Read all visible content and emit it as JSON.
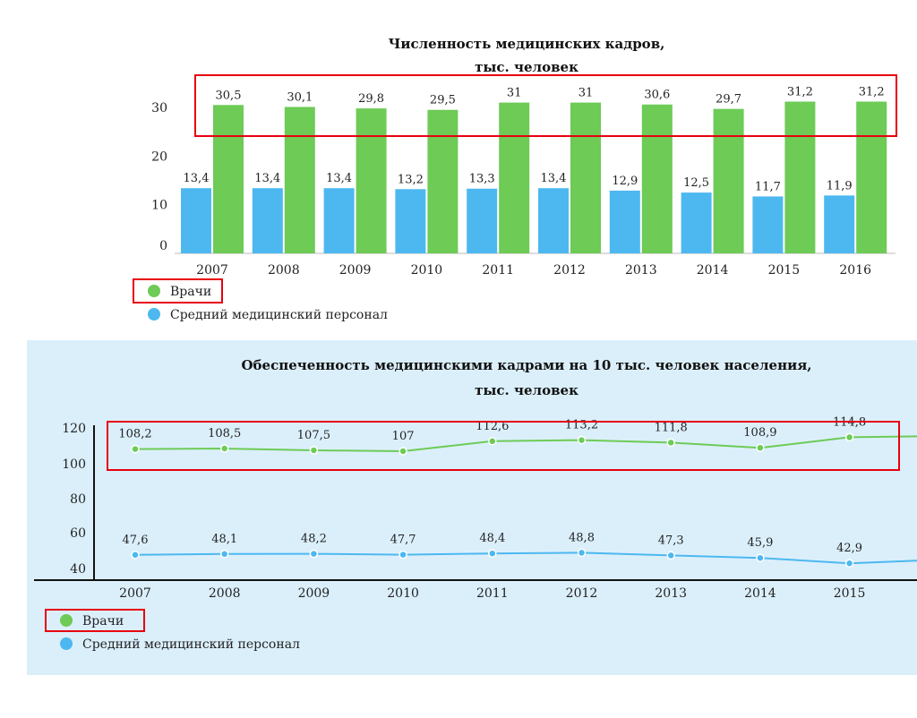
{
  "chart_data": [
    {
      "type": "bar",
      "title": "Численность медицинских кадров,",
      "subtitle": "тыс. человек",
      "categories": [
        "2007",
        "2008",
        "2009",
        "2010",
        "2011",
        "2012",
        "2013",
        "2014",
        "2015",
        "2016"
      ],
      "series": [
        {
          "name": "Средний медицинский персонал",
          "color": "#4db8f0",
          "values": [
            13.4,
            13.4,
            13.4,
            13.2,
            13.3,
            13.4,
            12.9,
            12.5,
            11.7,
            11.9
          ],
          "labels": [
            "13,4",
            "13,4",
            "13,4",
            "13,2",
            "13,3",
            "13,4",
            "12,9",
            "12,5",
            "11,7",
            "11,9"
          ]
        },
        {
          "name": "Врачи",
          "color": "#6dcb56",
          "values": [
            30.5,
            30.1,
            29.8,
            29.5,
            31,
            31,
            30.6,
            29.7,
            31.2,
            31.2
          ],
          "labels": [
            "30,5",
            "30,1",
            "29,8",
            "29,5",
            "31",
            "31",
            "30,6",
            "29,7",
            "31,2",
            "31,2"
          ]
        }
      ],
      "yticks": [
        "0",
        "10",
        "20",
        "30"
      ],
      "ytick_values": [
        0,
        10,
        20,
        30
      ],
      "ylim": [
        0,
        32
      ]
    },
    {
      "type": "line",
      "title": "Обеспеченность медицинскими кадрами на 10 тыс. человек населения,",
      "subtitle": "тыс. человек",
      "categories": [
        "2007",
        "2008",
        "2009",
        "2010",
        "2011",
        "2012",
        "2013",
        "2014",
        "2015"
      ],
      "series": [
        {
          "name": "Врачи",
          "color": "#6dcb56",
          "values": [
            108.2,
            108.5,
            107.5,
            107,
            112.6,
            113.2,
            111.8,
            108.9,
            114.8
          ],
          "labels": [
            "108,2",
            "108,5",
            "107,5",
            "107",
            "112,6",
            "113,2",
            "111,8",
            "108,9",
            "114,8"
          ]
        },
        {
          "name": "Средний медицинский персонал",
          "color": "#4db8f0",
          "values": [
            47.6,
            48.1,
            48.2,
            47.7,
            48.4,
            48.8,
            47.3,
            45.9,
            42.9
          ],
          "labels": [
            "47,6",
            "48,1",
            "48,2",
            "47,7",
            "48,4",
            "48,8",
            "47,3",
            "45,9",
            "42,9"
          ]
        }
      ],
      "yticks": [
        "40",
        "60",
        "80",
        "100",
        "120"
      ]
    }
  ],
  "legend": {
    "doctors": "Врачи",
    "nurses": "Средний медицинский персонал"
  },
  "colors": {
    "doctors": "#6dcb56",
    "nurses": "#4db8f0",
    "highlight": "#e8000f",
    "panel": "#dbeffb"
  }
}
